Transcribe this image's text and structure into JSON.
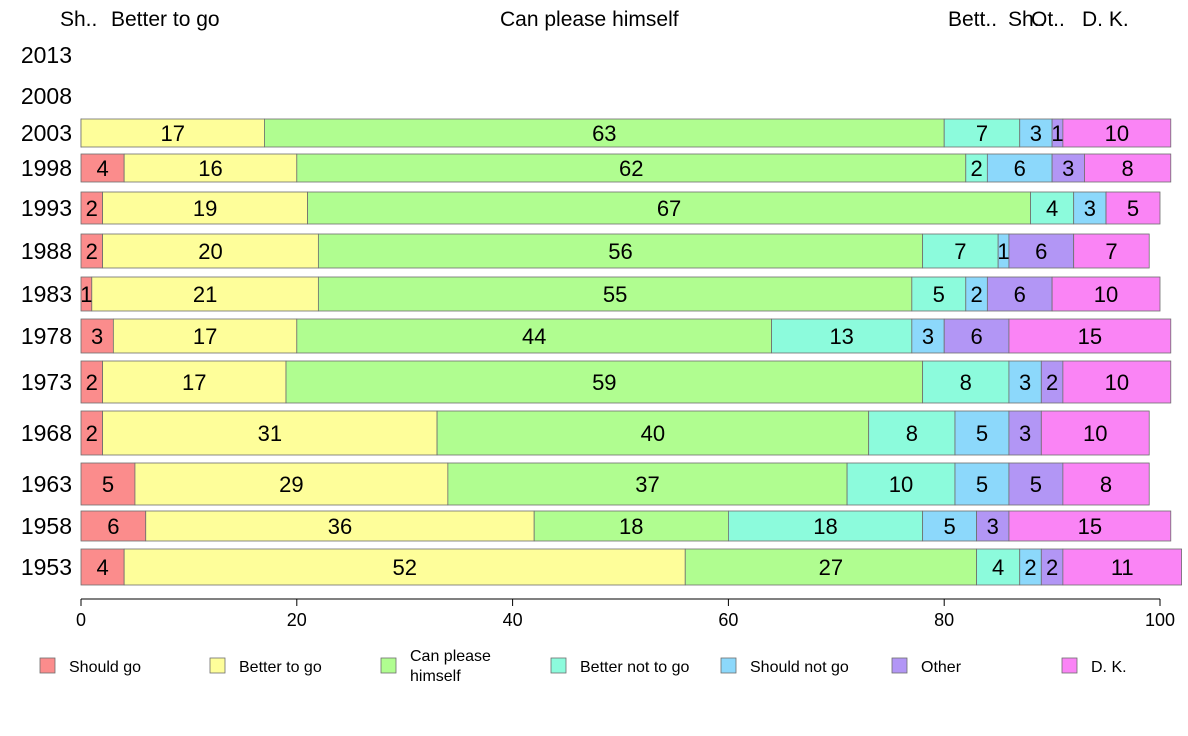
{
  "chart_data": {
    "type": "bar",
    "orientation": "horizontal",
    "stacked": true,
    "percent": true,
    "years": [
      "2013",
      "2008",
      "2003",
      "1998",
      "1993",
      "1988",
      "1983",
      "1978",
      "1973",
      "1968",
      "1963",
      "1958",
      "1953"
    ],
    "series": [
      {
        "name": "Should go",
        "color": "#fb8c8c",
        "values": [
          null,
          null,
          0,
          4,
          2,
          2,
          1,
          3,
          2,
          2,
          5,
          6,
          4
        ]
      },
      {
        "name": "Better to go",
        "color": "#fefe9a",
        "values": [
          null,
          null,
          17,
          16,
          19,
          20,
          21,
          17,
          17,
          31,
          29,
          36,
          52
        ]
      },
      {
        "name": "Can please himself",
        "color": "#b0fd90",
        "values": [
          null,
          null,
          63,
          62,
          67,
          56,
          55,
          44,
          59,
          40,
          37,
          18,
          27
        ]
      },
      {
        "name": "Better not to go",
        "color": "#8cfbdc",
        "values": [
          null,
          null,
          7,
          2,
          4,
          7,
          5,
          13,
          8,
          8,
          10,
          18,
          4
        ]
      },
      {
        "name": "Should not go",
        "color": "#8cd8fb",
        "values": [
          null,
          null,
          3,
          6,
          3,
          1,
          2,
          3,
          3,
          5,
          5,
          5,
          2
        ]
      },
      {
        "name": "Other",
        "color": "#b296f5",
        "values": [
          null,
          null,
          1,
          3,
          0,
          6,
          6,
          6,
          2,
          3,
          5,
          3,
          2
        ]
      },
      {
        "name": "D. K.",
        "color": "#fa84f5",
        "values": [
          null,
          null,
          10,
          8,
          5,
          7,
          10,
          15,
          10,
          10,
          8,
          15,
          11
        ]
      }
    ],
    "bar_labels": [
      [],
      [],
      [
        "17",
        "63",
        "7",
        "3",
        "1",
        "10"
      ],
      [
        "4",
        "16",
        "62",
        "2",
        "6",
        "3",
        "8"
      ],
      [
        "2",
        "19",
        "67",
        "4",
        "3",
        "5"
      ],
      [
        "2",
        "20",
        "56",
        "7",
        "1",
        "6",
        "7"
      ],
      [
        "1",
        "21",
        "55",
        "5",
        "2",
        "6",
        "10"
      ],
      [
        "3",
        "17",
        "44",
        "13",
        "3",
        "6",
        "15"
      ],
      [
        "2",
        "17",
        "59",
        "8",
        "3",
        "2",
        "10"
      ],
      [
        "2",
        "31",
        "40",
        "8",
        "5",
        "3",
        "10"
      ],
      [
        "5",
        "29",
        "37",
        "10",
        "5",
        "5",
        "8"
      ],
      [
        "6",
        "36",
        "18",
        "18",
        "5",
        "3",
        "15"
      ],
      [
        "4",
        "52",
        "27",
        "4",
        "2",
        "2",
        "11"
      ]
    ],
    "top_labels": [
      "Sh..",
      "Better to go",
      "Can please himself",
      "Bett..",
      "Sh..",
      "Ot..",
      "D. K."
    ],
    "xlim": [
      0,
      100
    ],
    "xticks": [
      "0",
      "20",
      "40",
      "60",
      "80",
      "100"
    ],
    "legend": {
      "placement": "bottom",
      "labels": [
        "Should go",
        "Better to go",
        "Can please\nhimself",
        "Better not to go",
        "Should not go",
        "Other",
        "D. K."
      ]
    },
    "grid": false
  }
}
